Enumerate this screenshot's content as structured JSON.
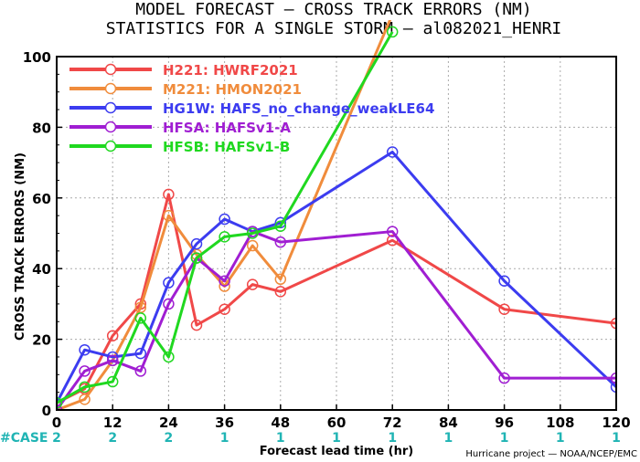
{
  "title_line1": "MODEL FORECAST — CROSS TRACK ERRORS (NM)",
  "title_line2": "STATISTICS FOR A SINGLE STORM — al082021_HENRI",
  "credit": "Hurricane project — NOAA/NCEP/EMC",
  "case_label": "#CASE",
  "chart_data": {
    "type": "line",
    "xlabel": "Forecast lead time (hr)",
    "ylabel": "CROSS TRACK ERRORS (NM)",
    "xlim": [
      0,
      120
    ],
    "ylim": [
      0,
      100
    ],
    "x_ticks": [
      "0",
      "12",
      "24",
      "36",
      "48",
      "60",
      "72",
      "84",
      "96",
      "108",
      "120"
    ],
    "y_ticks": [
      "0",
      "20",
      "40",
      "60",
      "80",
      "100"
    ],
    "grid": true,
    "legend_position": "top-left",
    "case_counts": [
      "2",
      "2",
      "2",
      "1",
      "1",
      "1",
      "1",
      "1",
      "1",
      "1",
      "1"
    ],
    "series": [
      {
        "name": "H221: HWRF2021",
        "color": "#f04848",
        "x": [
          0,
          6,
          12,
          18,
          24,
          30,
          36,
          42,
          48,
          72,
          96,
          120
        ],
        "y": [
          2,
          6,
          21,
          30,
          61,
          24,
          28.5,
          35.5,
          33.5,
          48,
          28.5,
          24.5
        ]
      },
      {
        "name": "M221: HMON2021",
        "color": "#f08c3c",
        "x": [
          0,
          6,
          12,
          18,
          24,
          30,
          36,
          42,
          48,
          72
        ],
        "y": [
          0,
          3,
          14,
          29,
          55,
          44,
          35,
          46.5,
          37,
          112
        ]
      },
      {
        "name": "HG1W: HAFS_no_change_weakLE64",
        "color": "#3c3cf0",
        "x": [
          0,
          6,
          12,
          18,
          24,
          30,
          36,
          42,
          48,
          72,
          96,
          120
        ],
        "y": [
          2,
          17,
          15,
          16,
          36,
          47,
          54,
          50.5,
          53,
          73,
          36.5,
          6.5
        ]
      },
      {
        "name": "HFSA: HAFSv1-A",
        "color": "#a01ed2",
        "x": [
          0,
          6,
          12,
          18,
          24,
          30,
          36,
          42,
          48,
          72,
          96,
          120
        ],
        "y": [
          0,
          11,
          14,
          11,
          30,
          43,
          36.5,
          50.5,
          47.5,
          50.5,
          9,
          9
        ]
      },
      {
        "name": "HFSB: HAFSv1-B",
        "color": "#20d820",
        "x": [
          0,
          6,
          12,
          18,
          24,
          30,
          36,
          42,
          48,
          72
        ],
        "y": [
          2,
          6.5,
          8,
          26,
          15,
          43,
          49,
          50,
          52,
          107
        ]
      }
    ]
  }
}
